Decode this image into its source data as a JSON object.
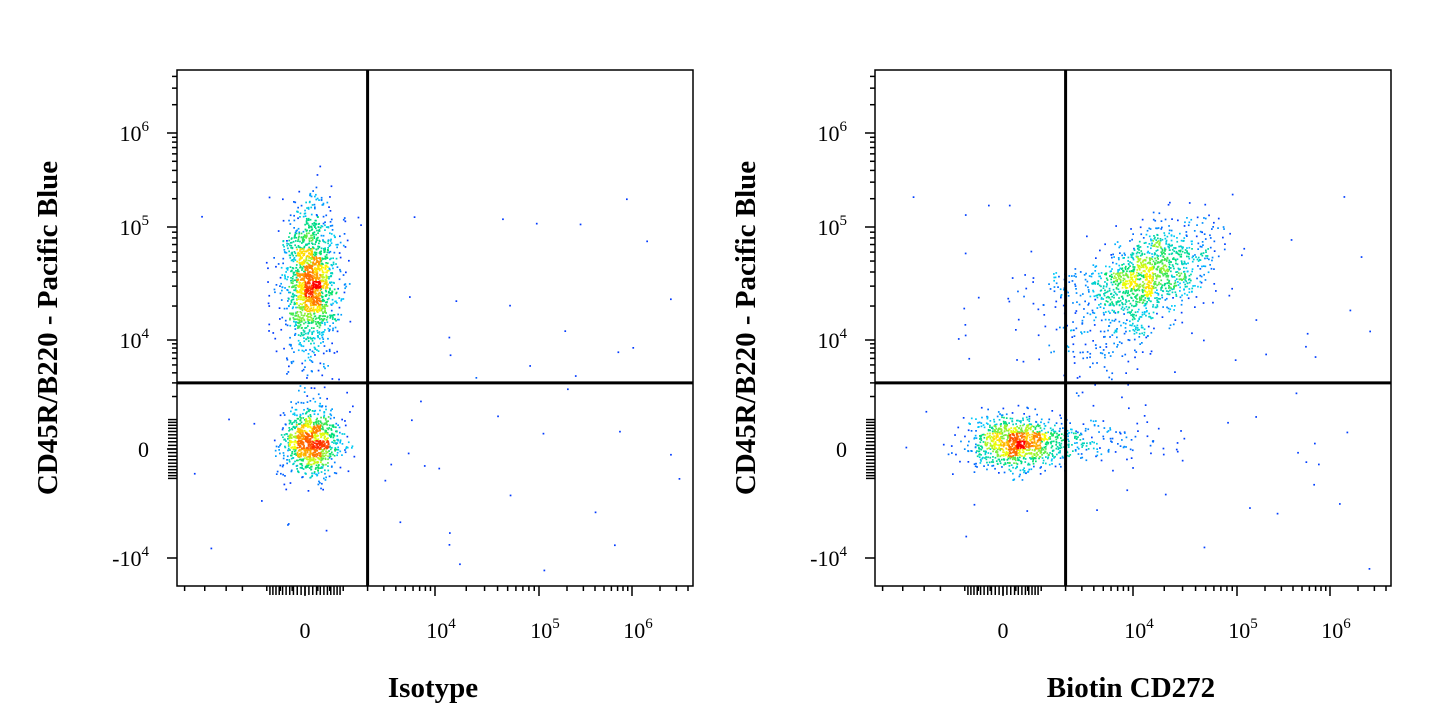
{
  "chart_data": [
    {
      "type": "scatter",
      "subtype": "flow-cytometry-density-dot-plot",
      "xlabel": "Isotype",
      "ylabel": "CD45R/B220 - Pacific Blue",
      "scale": "biexponential",
      "xlim": [
        -30000,
        3000000
      ],
      "ylim": [
        -12000,
        4000000
      ],
      "x_ticks": [
        {
          "base": "0",
          "exp": ""
        },
        {
          "base": "10",
          "exp": "4"
        },
        {
          "base": "10",
          "exp": "5"
        },
        {
          "base": "10",
          "exp": "6"
        }
      ],
      "y_ticks": [
        {
          "base": "10",
          "exp": "6"
        },
        {
          "base": "10",
          "exp": "5"
        },
        {
          "base": "10",
          "exp": "4"
        },
        {
          "base": "0",
          "exp": ""
        },
        {
          "base": "-10",
          "exp": "4"
        }
      ],
      "gate": {
        "x": 2000,
        "y": 3000
      },
      "populations": [
        {
          "x_center": 120,
          "y_center": 40000,
          "relative_size": 0.62
        },
        {
          "x_center": 120,
          "y_center": 200,
          "relative_size": 0.38
        }
      ],
      "grid": false,
      "legend": "none",
      "density_colors": [
        "#0000ff",
        "#00c8ff",
        "#00e070",
        "#ffff00",
        "#ff8000",
        "#ff0000"
      ]
    },
    {
      "type": "scatter",
      "subtype": "flow-cytometry-density-dot-plot",
      "xlabel": "Biotin CD272",
      "ylabel": "CD45R/B220 - Pacific Blue",
      "scale": "biexponential",
      "xlim": [
        -30000,
        3000000
      ],
      "ylim": [
        -12000,
        4000000
      ],
      "x_ticks": [
        {
          "base": "0",
          "exp": ""
        },
        {
          "base": "10",
          "exp": "4"
        },
        {
          "base": "10",
          "exp": "5"
        },
        {
          "base": "10",
          "exp": "6"
        }
      ],
      "y_ticks": [
        {
          "base": "10",
          "exp": "6"
        },
        {
          "base": "10",
          "exp": "5"
        },
        {
          "base": "10",
          "exp": "4"
        },
        {
          "base": "0",
          "exp": ""
        },
        {
          "base": "-10",
          "exp": "4"
        }
      ],
      "gate": {
        "x": 2000,
        "y": 3000
      },
      "populations": [
        {
          "x_center": 15000,
          "y_center": 40000,
          "relative_size": 0.55
        },
        {
          "x_center": 200,
          "y_center": 200,
          "relative_size": 0.45
        }
      ],
      "grid": false,
      "legend": "none",
      "density_colors": [
        "#0000ff",
        "#00c8ff",
        "#00e070",
        "#ffff00",
        "#ff8000",
        "#ff0000"
      ]
    }
  ]
}
